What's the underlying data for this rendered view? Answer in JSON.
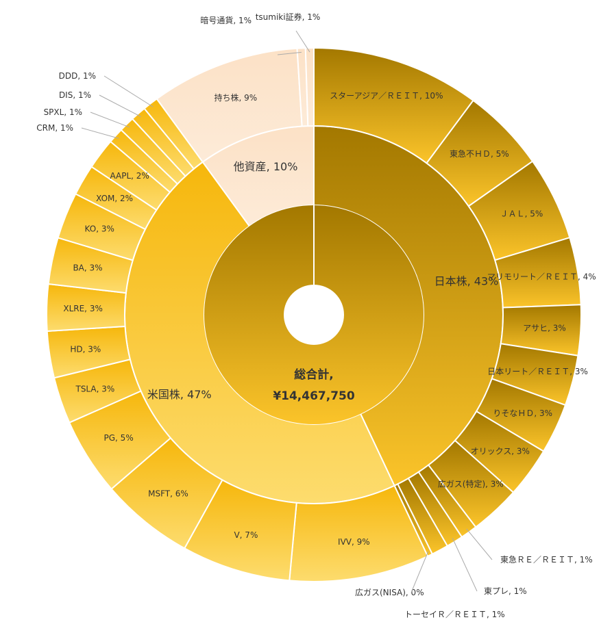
{
  "chart_data": {
    "type": "sunburst",
    "center": {
      "title": "総合計,",
      "value": "¥14,467,750"
    },
    "groups": [
      {
        "name": "日本株",
        "label": "日本株, 43%",
        "value": 43,
        "gradient": [
          "#a37800",
          "#fbc42a"
        ],
        "children": [
          {
            "label": "スターアジア／ＲＥＩＴ, 10%",
            "value": 10
          },
          {
            "label": "東急不ＨＤ, 5%",
            "value": 5
          },
          {
            "label": "ＪＡＬ, 5%",
            "value": 5
          },
          {
            "label": "マリモリート／ＲＥＩＴ, 4%",
            "value": 4
          },
          {
            "label": "アサヒ, 3%",
            "value": 3
          },
          {
            "label": "日本リート／ＲＥＩＴ, 3%",
            "value": 3
          },
          {
            "label": "りそなＨＤ, 3%",
            "value": 3
          },
          {
            "label": "オリックス, 3%",
            "value": 3
          },
          {
            "label": "広ガス(特定), 3%",
            "value": 3
          },
          {
            "label": "東急ＲＥ／ＲＥＩＴ, 1%",
            "value": 1
          },
          {
            "label": "東プレ, 1%",
            "value": 1
          },
          {
            "label": "トーセイＲ／ＲＥＩＴ, 1%",
            "value": 1
          },
          {
            "label": "広ガス(NISA), 0%",
            "value": 0.3
          }
        ]
      },
      {
        "name": "米国株",
        "label": "米国株, 47%",
        "value": 47,
        "gradient": [
          "#f6b70c",
          "#fddc6e"
        ],
        "children": [
          {
            "label": "IVV, 9%",
            "value": 9
          },
          {
            "label": "V, 7%",
            "value": 7
          },
          {
            "label": "MSFT, 6%",
            "value": 6
          },
          {
            "label": "PG, 5%",
            "value": 5
          },
          {
            "label": "TSLA, 3%",
            "value": 3
          },
          {
            "label": "HD, 3%",
            "value": 3
          },
          {
            "label": "XLRE, 3%",
            "value": 3
          },
          {
            "label": "BA, 3%",
            "value": 3
          },
          {
            "label": "KO, 3%",
            "value": 3
          },
          {
            "label": "XOM, 2%",
            "value": 2
          },
          {
            "label": "AAPL, 2%",
            "value": 2
          },
          {
            "label": "CRM, 1%",
            "value": 1
          },
          {
            "label": "SPXL, 1%",
            "value": 1
          },
          {
            "label": "DIS, 1%",
            "value": 1
          },
          {
            "label": "DDD, 1%",
            "value": 1
          }
        ]
      },
      {
        "name": "他資産",
        "label": "他資産, 10%",
        "value": 10,
        "gradient": [
          "#fce1c6",
          "#fdebd8"
        ],
        "children": [
          {
            "label": "持ち株, 9%",
            "value": 9
          },
          {
            "label": "暗号通貨, 1%",
            "value": 0.5
          },
          {
            "label": "tsumiki証券, 1%",
            "value": 0.5
          }
        ]
      }
    ],
    "colors": {
      "center_from": "#a37800",
      "center_to": "#fbc42a",
      "stroke": "#ffffff",
      "leader": "#aaaaaa"
    }
  }
}
